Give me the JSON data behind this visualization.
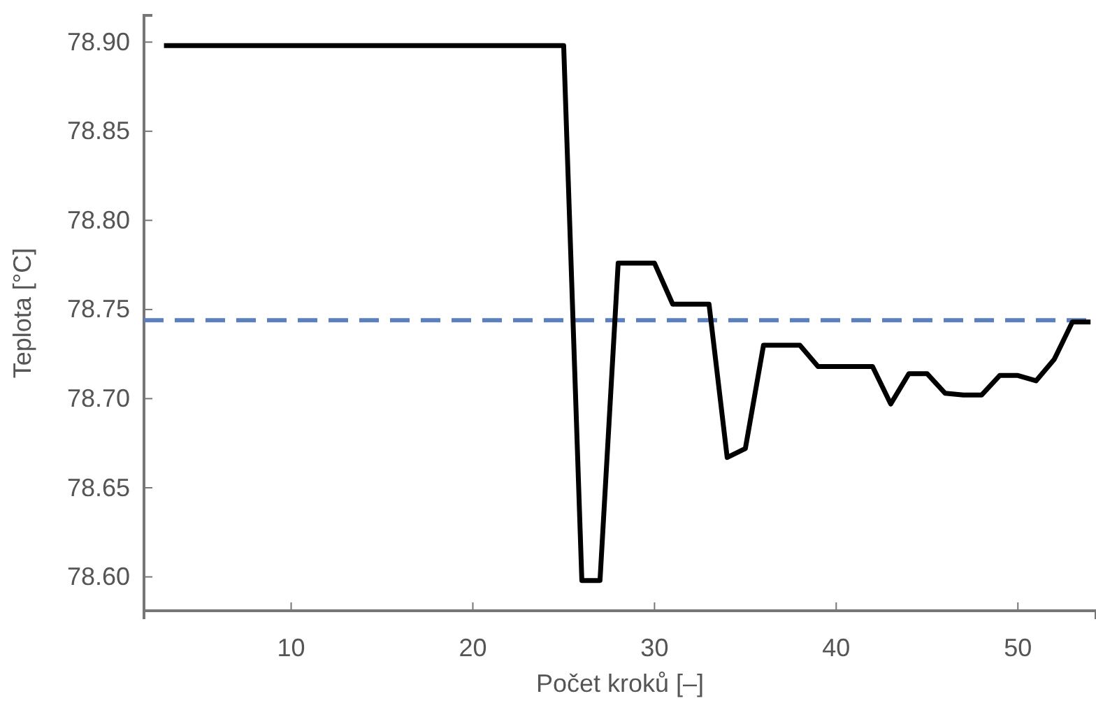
{
  "chart_data": {
    "type": "line",
    "xlabel": "Počet kroků [–]",
    "ylabel": "Teplota [°C]",
    "xlim": [
      1.9,
      54.3
    ],
    "ylim": [
      78.581,
      78.915
    ],
    "xticks": [
      10,
      20,
      30,
      40,
      50
    ],
    "yticks": [
      {
        "value": 78.6,
        "label": "78.60"
      },
      {
        "value": 78.65,
        "label": "78.65"
      },
      {
        "value": 78.7,
        "label": "78.70"
      },
      {
        "value": 78.75,
        "label": "78.75"
      },
      {
        "value": 78.8,
        "label": "78.80"
      },
      {
        "value": 78.85,
        "label": "78.85"
      },
      {
        "value": 78.9,
        "label": "78.90"
      }
    ],
    "grid": false,
    "marker": "none",
    "line_style": "solid",
    "x": [
      3,
      25,
      26,
      27,
      28,
      29,
      30,
      31,
      32,
      33,
      34,
      35,
      36,
      37,
      38,
      39,
      40,
      41,
      42,
      43,
      44,
      45,
      46,
      47,
      48,
      49,
      50,
      51,
      52,
      53,
      54
    ],
    "series": [
      {
        "color": "#000000",
        "values": [
          78.898,
          78.898,
          78.598,
          78.598,
          78.776,
          78.776,
          78.776,
          78.753,
          78.753,
          78.753,
          78.667,
          78.672,
          78.73,
          78.73,
          78.73,
          78.718,
          78.718,
          78.718,
          78.718,
          78.697,
          78.714,
          78.714,
          78.703,
          78.702,
          78.702,
          78.713,
          78.713,
          78.71,
          78.722,
          78.743,
          78.743
        ]
      }
    ],
    "ref_lines": [
      {
        "axis": "y",
        "value": 78.744,
        "color": "#5b7fbf",
        "line_style": "dashed"
      }
    ]
  }
}
